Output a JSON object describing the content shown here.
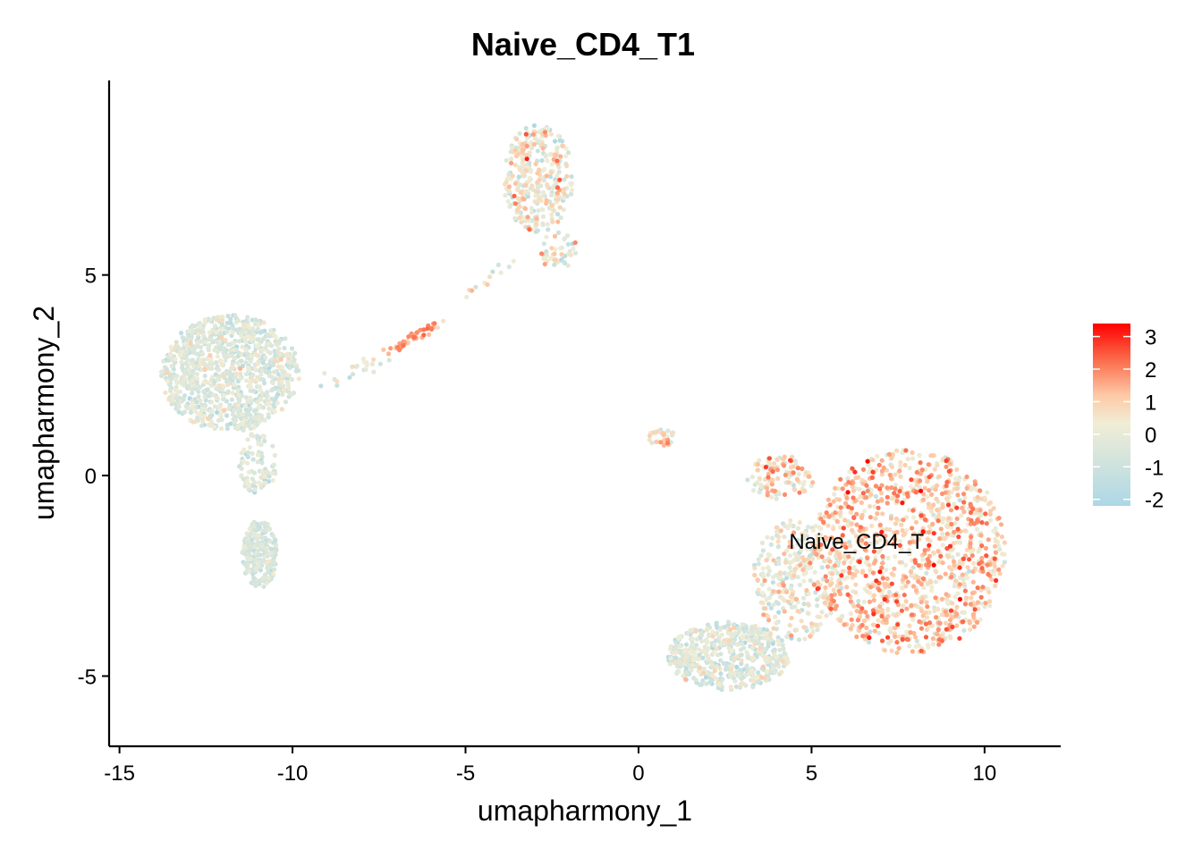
{
  "chart_data": {
    "type": "scatter",
    "title": "Naive_CD4_T1",
    "xlabel": "umapharmony_1",
    "ylabel": "umapharmony_2",
    "xlim": [
      -15.3,
      12.2
    ],
    "ylim": [
      -6.75,
      9.85
    ],
    "x_ticks": [
      -15,
      -10,
      -5,
      0,
      5,
      10
    ],
    "x_tick_labels": [
      "-15",
      "-10",
      "-5",
      "0",
      "5",
      "10"
    ],
    "y_ticks": [
      -5,
      0,
      5
    ],
    "y_tick_labels": [
      "-5",
      "0",
      "5"
    ],
    "grid": false,
    "legend_position": "right",
    "colorscale": {
      "min": -2.2,
      "max": 3.4,
      "stops": [
        {
          "value": -2.2,
          "color": "#ADD8E6"
        },
        {
          "value": 0.35,
          "color": "#F1EDD5"
        },
        {
          "value": 1.2,
          "color": "#FDC9A6"
        },
        {
          "value": 2.3,
          "color": "#FB6A4A"
        },
        {
          "value": 3.4,
          "color": "#FF0000"
        }
      ],
      "ticks": [
        3,
        2,
        1,
        0,
        -1,
        -2
      ],
      "tick_labels": [
        "3",
        "2",
        "1",
        "0",
        "-1",
        "-2"
      ]
    },
    "annotations": [
      {
        "text": "Naive_CD4_T",
        "x": 6.3,
        "y": -1.65
      }
    ],
    "clusters": [
      {
        "shape": "ellipse",
        "cx": -11.8,
        "cy": 2.55,
        "rx": 2.0,
        "ry": 1.45,
        "n": 950,
        "mean": -0.6,
        "sd": 0.6
      },
      {
        "shape": "ellipse",
        "cx": -11.0,
        "cy": 0.3,
        "rx": 0.55,
        "ry": 0.8,
        "n": 90,
        "mean": -0.6,
        "sd": 0.55
      },
      {
        "shape": "ellipse",
        "cx": -10.95,
        "cy": -1.95,
        "rx": 0.5,
        "ry": 0.85,
        "n": 230,
        "mean": -0.8,
        "sd": 0.5
      },
      {
        "shape": "segment",
        "x1": -9.1,
        "y1": 2.3,
        "x2": -7.4,
        "y2": 2.9,
        "w": 0.22,
        "n": 22,
        "mean": -0.4,
        "sd": 0.6
      },
      {
        "shape": "segment",
        "x1": -7.4,
        "y1": 2.95,
        "x2": -5.8,
        "y2": 3.8,
        "w": 0.12,
        "n": 45,
        "mean": 1.6,
        "sd": 0.45
      },
      {
        "shape": "segment",
        "x1": -4.9,
        "y1": 4.5,
        "x2": -3.7,
        "y2": 5.3,
        "w": 0.18,
        "n": 12,
        "mean": -0.1,
        "sd": 0.8
      },
      {
        "shape": "ellipse",
        "cx": -2.9,
        "cy": 7.4,
        "rx": 1.0,
        "ry": 1.35,
        "n": 330,
        "mean": 0.0,
        "sd": 0.9
      },
      {
        "shape": "ellipse",
        "cx": -2.3,
        "cy": 5.6,
        "rx": 0.55,
        "ry": 0.5,
        "n": 45,
        "mean": 0.0,
        "sd": 0.9
      },
      {
        "shape": "ellipse",
        "cx": 0.7,
        "cy": 0.95,
        "rx": 0.45,
        "ry": 0.2,
        "n": 30,
        "mean": 0.5,
        "sd": 0.9
      },
      {
        "shape": "ellipse",
        "cx": 7.8,
        "cy": -1.9,
        "rx": 2.8,
        "ry": 2.55,
        "n": 1150,
        "mean": 0.95,
        "sd": 0.85
      },
      {
        "shape": "ellipse",
        "cx": 4.1,
        "cy": -0.05,
        "rx": 1.0,
        "ry": 0.55,
        "n": 110,
        "mean": 0.6,
        "sd": 0.95
      },
      {
        "shape": "ellipse",
        "cx": 2.6,
        "cy": -4.5,
        "rx": 1.75,
        "ry": 0.85,
        "n": 520,
        "mean": -0.55,
        "sd": 0.75
      },
      {
        "shape": "ellipse",
        "cx": 4.6,
        "cy": -2.6,
        "rx": 1.3,
        "ry": 1.5,
        "n": 300,
        "mean": 0.0,
        "sd": 0.85
      }
    ]
  }
}
